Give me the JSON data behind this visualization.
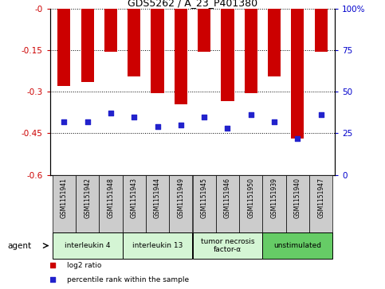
{
  "title": "GDS5262 / A_23_P401380",
  "samples": [
    "GSM1151941",
    "GSM1151942",
    "GSM1151948",
    "GSM1151943",
    "GSM1151944",
    "GSM1151949",
    "GSM1151945",
    "GSM1151946",
    "GSM1151950",
    "GSM1151939",
    "GSM1151940",
    "GSM1151947"
  ],
  "log2_ratios": [
    -0.28,
    -0.265,
    -0.155,
    -0.245,
    -0.305,
    -0.345,
    -0.155,
    -0.335,
    -0.305,
    -0.245,
    -0.47,
    -0.155
  ],
  "percentile_ranks": [
    32,
    32,
    37,
    35,
    29,
    30,
    35,
    28,
    36,
    32,
    22,
    36
  ],
  "ylim_left": [
    -0.6,
    0.0
  ],
  "ylim_right": [
    0,
    100
  ],
  "yticks_left": [
    0.0,
    -0.15,
    -0.3,
    -0.45,
    -0.6
  ],
  "ytick_labels_left": [
    "-0",
    "-0.15",
    "-0.3",
    "-0.45",
    "-0.6"
  ],
  "yticks_right": [
    0,
    25,
    50,
    75,
    100
  ],
  "ytick_labels_right": [
    "0",
    "25",
    "50",
    "75",
    "100%"
  ],
  "groups": [
    {
      "label": "interleukin 4",
      "start": 0,
      "end": 3,
      "color": "#d4f5d4"
    },
    {
      "label": "interleukin 13",
      "start": 3,
      "end": 6,
      "color": "#d4f5d4"
    },
    {
      "label": "tumor necrosis\nfactor-α",
      "start": 6,
      "end": 9,
      "color": "#d4f5d4"
    },
    {
      "label": "unstimulated",
      "start": 9,
      "end": 12,
      "color": "#66cc66"
    }
  ],
  "bar_color": "#cc0000",
  "dot_color": "#2222cc",
  "bar_width": 0.55,
  "bg_color": "#ffffff",
  "plot_bg_color": "#ffffff",
  "label_area_color": "#cccccc",
  "legend_items": [
    {
      "color": "#cc0000",
      "marker": "s",
      "label": "log2 ratio"
    },
    {
      "color": "#2222cc",
      "marker": "s",
      "label": "percentile rank within the sample"
    }
  ],
  "agent_label": "agent",
  "left_label_color": "#cc0000",
  "right_label_color": "#0000cc"
}
